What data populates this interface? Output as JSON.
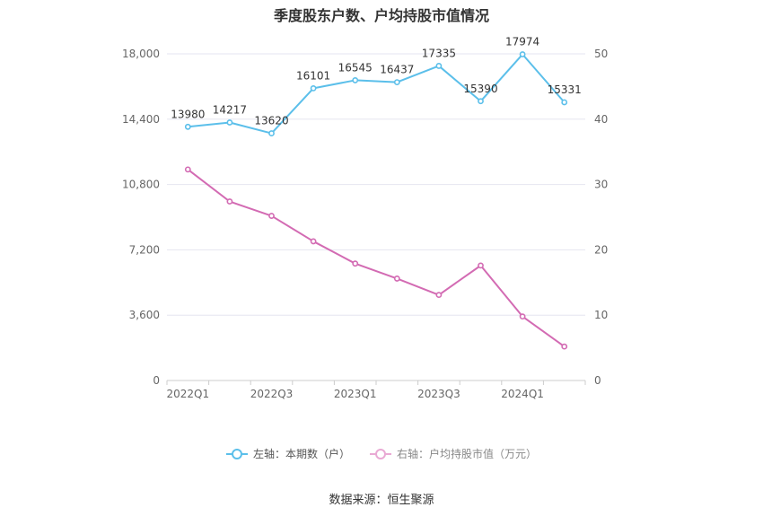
{
  "chart_data": {
    "type": "line",
    "title": "季度股东户数、户均持股市值情况",
    "categories": [
      "2022Q1",
      "2022Q2",
      "2022Q3",
      "2022Q4",
      "2023Q1",
      "2023Q2",
      "2023Q3",
      "2023Q4",
      "2024Q1",
      "2024Q2"
    ],
    "x_tick_labels": [
      "2022Q1",
      "2022Q3",
      "2023Q1",
      "2023Q3",
      "2024Q1"
    ],
    "left_axis": {
      "ylim": [
        0,
        18000
      ],
      "ticks": [
        "0",
        "3,600",
        "7,200",
        "10,800",
        "14,400",
        "18,000"
      ],
      "tick_values": [
        0,
        3600,
        7200,
        10800,
        14400,
        18000
      ]
    },
    "right_axis": {
      "ylim": [
        0,
        50
      ],
      "ticks": [
        "0",
        "10",
        "20",
        "30",
        "40",
        "50"
      ],
      "tick_values": [
        0,
        10,
        20,
        30,
        40,
        50
      ]
    },
    "series": [
      {
        "name": "左轴：本期数（户）",
        "axis": "left",
        "color": "#5bbfea",
        "values": [
          13980,
          14217,
          13620,
          16101,
          16545,
          16437,
          17335,
          15390,
          17974,
          15331
        ],
        "labels": [
          "13980",
          "14217",
          "13620",
          "16101",
          "16545",
          "16437",
          "17335",
          "15390",
          "17974",
          "15331"
        ]
      },
      {
        "name": "右轴：户均持股市值（万元）",
        "axis": "right",
        "color": "#d36bb3",
        "values": [
          32.3,
          27.4,
          25.2,
          21.3,
          17.9,
          15.6,
          13.1,
          17.6,
          9.8,
          5.2
        ]
      }
    ],
    "legend_position": "bottom",
    "grid": true
  },
  "legend": {
    "left_label": "左轴：本期数（户）",
    "right_label": "右轴：户均持股市值（万元）",
    "left_color": "#5bbfea",
    "right_color": "#d36bb3"
  },
  "source": "数据来源：恒生聚源"
}
